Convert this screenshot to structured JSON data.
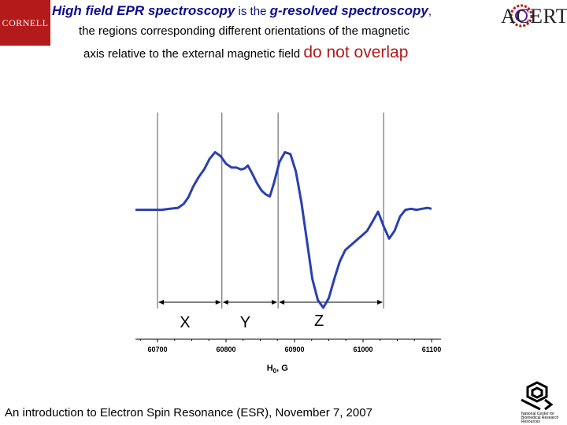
{
  "header": {
    "left_logo_text": "CORNELL",
    "right_logo_text": "ACERT",
    "title_line1_part1": "High field EPR spectroscopy",
    "title_line1_part2": " is the ",
    "title_line1_part3": "g-resolved spectroscopy",
    "title_line1_part4": ",",
    "title_line2": "the regions corresponding different orientations of the magnetic",
    "title_line3_part1": "axis relative to the external magnetic field ",
    "title_line3_highlight": "do not overlap"
  },
  "chart_data": {
    "type": "line",
    "xlabel": "H0, G",
    "xlabel_main": "H",
    "xlabel_sub": "0",
    "xlabel_rest": ", G",
    "xlim": [
      60700,
      61100
    ],
    "x_ticks": [
      60700,
      60800,
      60900,
      61000,
      61100
    ],
    "x_tick_labels": [
      "60700",
      "60800",
      "60900",
      "61000",
      "61100"
    ],
    "series": [
      {
        "x": [
          60700,
          60706,
          60718,
          60730,
          60738,
          60745,
          60752,
          60760,
          60768,
          60776,
          60784,
          60792,
          60800,
          60808,
          60815,
          60822,
          60827,
          60832,
          60838,
          60845,
          60852,
          60858,
          60864,
          60870,
          60878,
          60886,
          60894,
          60902,
          60910,
          60918,
          60926,
          60934,
          60942,
          60950,
          60958,
          60966,
          60974,
          60982,
          60990,
          60998,
          61006,
          61014,
          61022,
          61030,
          61038,
          61046,
          61054,
          61062,
          61070,
          61078,
          61086,
          61094,
          61100
        ],
        "y": [
          0.02,
          0.02,
          0.03,
          0.04,
          0.08,
          0.15,
          0.26,
          0.36,
          0.44,
          0.55,
          0.62,
          0.58,
          0.5,
          0.46,
          0.46,
          0.44,
          0.45,
          0.48,
          0.4,
          0.3,
          0.22,
          0.18,
          0.16,
          0.3,
          0.52,
          0.62,
          0.6,
          0.42,
          0.1,
          -0.3,
          -0.7,
          -0.92,
          -1.0,
          -0.9,
          -0.7,
          -0.52,
          -0.4,
          -0.35,
          -0.3,
          -0.25,
          -0.2,
          -0.1,
          0.0,
          -0.15,
          -0.28,
          -0.2,
          -0.05,
          0.02,
          0.03,
          0.02,
          0.03,
          0.04,
          0.03
        ]
      }
    ],
    "regions": [
      {
        "label": "X",
        "from": 60700,
        "to": 60794
      },
      {
        "label": "Y",
        "from": 60794,
        "to": 60876
      },
      {
        "label": "Z",
        "from": 60876,
        "to": 61030
      }
    ],
    "legend": "none",
    "grid": false
  },
  "footer": {
    "text": "An introduction to Electron Spin Resonance (ESR), November 7, 2007",
    "right_logo_caption": "National Center for Biomedical Research Resources"
  },
  "colors": {
    "title_blue": "#0d0d8c",
    "highlight_red": "#b31b1b",
    "trace_blue": "#2a3fb0"
  }
}
